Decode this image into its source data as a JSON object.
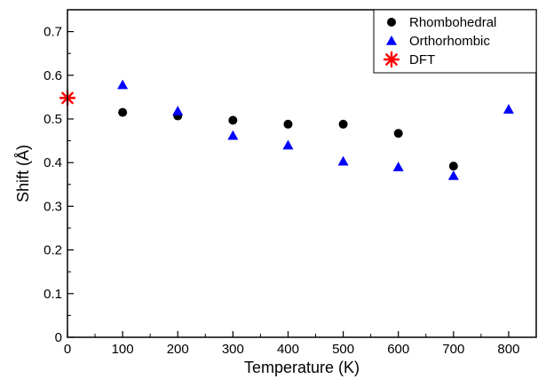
{
  "chart_data": {
    "type": "scatter",
    "title": "",
    "xlabel": "Temperature (K)",
    "ylabel": "Shift (Å)",
    "xlim": [
      0,
      850
    ],
    "ylim": [
      0,
      0.75
    ],
    "xticks": [
      0,
      100,
      200,
      300,
      400,
      500,
      600,
      700,
      800
    ],
    "yticks": [
      0,
      0.1,
      0.2,
      0.3,
      0.4,
      0.5,
      0.6,
      0.7
    ],
    "xtick_labels": [
      "0",
      "100",
      "200",
      "300",
      "400",
      "500",
      "600",
      "700",
      "800"
    ],
    "ytick_labels": [
      "0",
      "0.1",
      "0.2",
      "0.3",
      "0.4",
      "0.5",
      "0.6",
      "0.7"
    ],
    "grid": false,
    "legend_position": "top-right",
    "series": [
      {
        "name": "Rhombohedral",
        "marker": "circle",
        "color": "#000000",
        "points": [
          {
            "x": 100,
            "y": 0.515
          },
          {
            "x": 200,
            "y": 0.507
          },
          {
            "x": 300,
            "y": 0.497
          },
          {
            "x": 400,
            "y": 0.488
          },
          {
            "x": 500,
            "y": 0.488
          },
          {
            "x": 600,
            "y": 0.467
          },
          {
            "x": 700,
            "y": 0.392
          }
        ]
      },
      {
        "name": "Orthorhombic",
        "marker": "triangle",
        "color": "#0000ff",
        "points": [
          {
            "x": 100,
            "y": 0.578
          },
          {
            "x": 200,
            "y": 0.518
          },
          {
            "x": 300,
            "y": 0.462
          },
          {
            "x": 400,
            "y": 0.44
          },
          {
            "x": 500,
            "y": 0.403
          },
          {
            "x": 600,
            "y": 0.39
          },
          {
            "x": 700,
            "y": 0.37
          },
          {
            "x": 800,
            "y": 0.522
          }
        ]
      },
      {
        "name": "DFT",
        "marker": "asterisk",
        "color": "#ff0000",
        "points": [
          {
            "x": 0,
            "y": 0.548
          }
        ]
      }
    ]
  }
}
